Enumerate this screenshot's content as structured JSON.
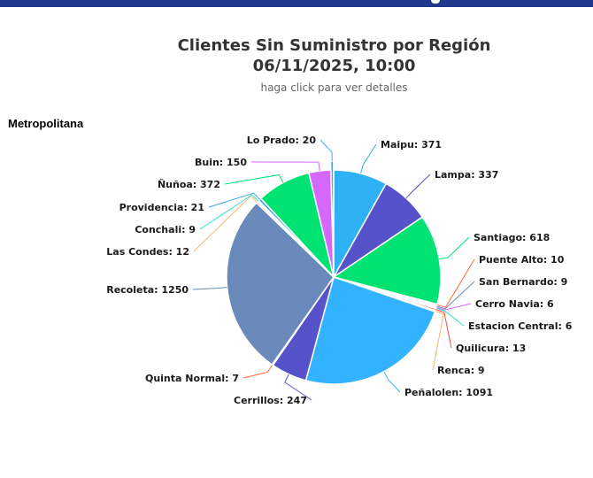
{
  "chart_data": {
    "type": "pie",
    "title": "Clientes Sin Suministro por Región",
    "title_line2": "06/11/2025, 10:00",
    "subtitle": "haga click para ver detalles",
    "region": "Metropolitana",
    "slices": [
      {
        "name": "Maipu",
        "value": 371,
        "color": "#2fb1f5",
        "label": "Maipu: 371"
      },
      {
        "name": "Lampa",
        "value": 337,
        "color": "#5652c9",
        "label": "Lampa: 337"
      },
      {
        "name": "Santiago",
        "value": 618,
        "color": "#00e272",
        "label": "Santiago: 618"
      },
      {
        "name": "Puente Alto",
        "value": 10,
        "color": "#fe6a35",
        "label": "Puente Alto: 10"
      },
      {
        "name": "San Bernardo",
        "value": 9,
        "color": "#6b8abc",
        "label": "San Bernardo: 9"
      },
      {
        "name": "Cerro Navia",
        "value": 6,
        "color": "#d568fb",
        "label": "Cerro Navia: 6"
      },
      {
        "name": "Estacion Central",
        "value": 6,
        "color": "#2ee0ca",
        "label": "Estacion Central: 6"
      },
      {
        "name": "Quilicura",
        "value": 13,
        "color": "#fa4b42",
        "label": "Quilicura: 13"
      },
      {
        "name": "Renca",
        "value": 9,
        "color": "#feb56a",
        "label": "Renca: 9"
      },
      {
        "name": "Peñalolen",
        "value": 1091,
        "color": "#33b2ff",
        "label": "Peñalolen: 1091"
      },
      {
        "name": "Cerrillos",
        "value": 247,
        "color": "#5652c9",
        "label": "Cerrillos: 247"
      },
      {
        "name": "Quinta Normal",
        "value": 7,
        "color": "#fe6a35",
        "label": "Quinta Normal: 7"
      },
      {
        "name": "Recoleta",
        "value": 1250,
        "color": "#6b8abc",
        "label": "Recoleta: 1250"
      },
      {
        "name": "Las Condes",
        "value": 12,
        "color": "#feb56a",
        "label": "Las Condes: 12"
      },
      {
        "name": "Conchali",
        "value": 9,
        "color": "#2ee0ca",
        "label": "Conchali: 9"
      },
      {
        "name": "Providencia",
        "value": 21,
        "color": "#3fa9d8",
        "label": "Providencia: 21"
      },
      {
        "name": "Ñuñoa",
        "value": 372,
        "color": "#00e272",
        "label": "Ñuñoa: 372"
      },
      {
        "name": "Buin",
        "value": 150,
        "color": "#d568fb",
        "label": "Buin: 150"
      },
      {
        "name": "Lo Prado",
        "value": 20,
        "color": "#2fb1f5",
        "label": "Lo Prado: 20"
      }
    ]
  }
}
